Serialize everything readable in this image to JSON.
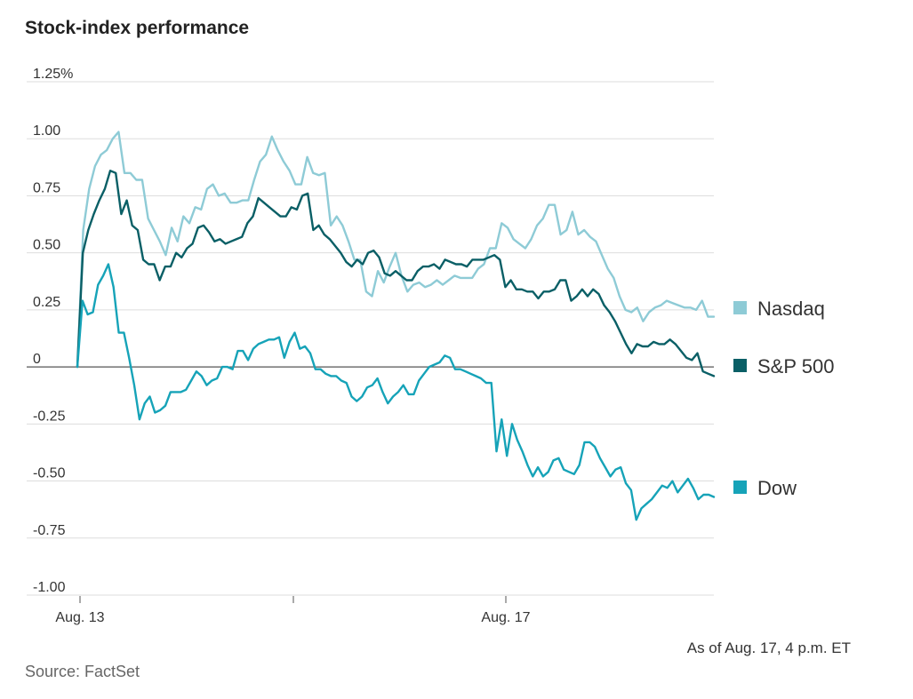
{
  "title": "Stock-index performance",
  "note": "As of Aug. 17, 4 p.m. ET",
  "source": "Source: FactSet",
  "chart_data": {
    "type": "line",
    "ylim": [
      -1.0,
      1.25
    ],
    "y_ticks": [
      {
        "value": 1.25,
        "label": "1.25%"
      },
      {
        "value": 1.0,
        "label": "1.00"
      },
      {
        "value": 0.75,
        "label": "0.75"
      },
      {
        "value": 0.5,
        "label": "0.50"
      },
      {
        "value": 0.25,
        "label": "0.25"
      },
      {
        "value": 0,
        "label": "0"
      },
      {
        "value": -0.25,
        "label": "-0.25"
      },
      {
        "value": -0.5,
        "label": "-0.50"
      },
      {
        "value": -0.75,
        "label": "-0.75"
      },
      {
        "value": -1.0,
        "label": "-1.00"
      }
    ],
    "x_ticks": [
      {
        "label": "Aug. 13"
      },
      {
        "label": ""
      },
      {
        "label": "Aug. 17"
      }
    ],
    "grid": true,
    "legend": "right",
    "series": [
      {
        "name": "Nasdaq",
        "color": "#8ecbd6",
        "values": [
          0.0,
          0.6,
          0.78,
          0.88,
          0.93,
          0.95,
          1.0,
          1.03,
          0.85,
          0.85,
          0.82,
          0.82,
          0.65,
          0.6,
          0.55,
          0.49,
          0.61,
          0.55,
          0.66,
          0.63,
          0.7,
          0.69,
          0.78,
          0.8,
          0.75,
          0.76,
          0.72,
          0.72,
          0.73,
          0.73,
          0.82,
          0.9,
          0.93,
          1.01,
          0.95,
          0.9,
          0.86,
          0.8,
          0.8,
          0.92,
          0.85,
          0.84,
          0.85,
          0.62,
          0.66,
          0.62,
          0.55,
          0.47,
          0.47,
          0.33,
          0.31,
          0.42,
          0.37,
          0.44,
          0.5,
          0.4,
          0.33,
          0.36,
          0.37,
          0.35,
          0.36,
          0.38,
          0.36,
          0.38,
          0.4,
          0.39,
          0.39,
          0.39,
          0.43,
          0.45,
          0.52,
          0.52,
          0.63,
          0.61,
          0.56,
          0.54,
          0.52,
          0.56,
          0.62,
          0.65,
          0.71,
          0.71,
          0.58,
          0.6,
          0.68,
          0.58,
          0.6,
          0.57,
          0.55,
          0.49,
          0.43,
          0.39,
          0.31,
          0.25,
          0.24,
          0.26,
          0.2,
          0.24,
          0.26,
          0.27,
          0.29,
          0.28,
          0.27,
          0.26,
          0.26,
          0.25,
          0.29,
          0.22,
          0.22
        ]
      },
      {
        "name": "S&P 500",
        "color": "#0a5f66",
        "values": [
          0.0,
          0.5,
          0.6,
          0.67,
          0.73,
          0.78,
          0.86,
          0.85,
          0.67,
          0.73,
          0.62,
          0.6,
          0.47,
          0.45,
          0.45,
          0.38,
          0.44,
          0.44,
          0.5,
          0.48,
          0.52,
          0.54,
          0.61,
          0.62,
          0.59,
          0.55,
          0.56,
          0.54,
          0.55,
          0.56,
          0.57,
          0.63,
          0.66,
          0.74,
          0.72,
          0.7,
          0.68,
          0.66,
          0.66,
          0.7,
          0.69,
          0.75,
          0.76,
          0.6,
          0.62,
          0.58,
          0.56,
          0.53,
          0.5,
          0.46,
          0.44,
          0.47,
          0.45,
          0.5,
          0.51,
          0.48,
          0.41,
          0.4,
          0.42,
          0.4,
          0.38,
          0.38,
          0.42,
          0.44,
          0.44,
          0.45,
          0.43,
          0.47,
          0.46,
          0.45,
          0.45,
          0.44,
          0.47,
          0.47,
          0.47,
          0.48,
          0.49,
          0.47,
          0.35,
          0.38,
          0.34,
          0.34,
          0.33,
          0.33,
          0.3,
          0.33,
          0.33,
          0.34,
          0.38,
          0.38,
          0.29,
          0.31,
          0.34,
          0.31,
          0.34,
          0.32,
          0.27,
          0.24,
          0.2,
          0.15,
          0.1,
          0.06,
          0.1,
          0.09,
          0.09,
          0.11,
          0.1,
          0.1,
          0.12,
          0.1,
          0.07,
          0.04,
          0.03,
          0.06,
          -0.02,
          -0.03,
          -0.04
        ]
      },
      {
        "name": "Dow",
        "color": "#16a3b8",
        "values": [
          0.0,
          0.29,
          0.23,
          0.24,
          0.36,
          0.4,
          0.45,
          0.35,
          0.15,
          0.15,
          0.04,
          -0.08,
          -0.23,
          -0.16,
          -0.13,
          -0.2,
          -0.19,
          -0.17,
          -0.11,
          -0.11,
          -0.11,
          -0.1,
          -0.06,
          -0.02,
          -0.04,
          -0.08,
          -0.06,
          -0.05,
          0.0,
          0.0,
          -0.01,
          0.07,
          0.07,
          0.03,
          0.08,
          0.1,
          0.11,
          0.12,
          0.12,
          0.13,
          0.04,
          0.11,
          0.15,
          0.08,
          0.09,
          0.06,
          -0.01,
          -0.01,
          -0.03,
          -0.04,
          -0.04,
          -0.06,
          -0.07,
          -0.13,
          -0.15,
          -0.13,
          -0.09,
          -0.08,
          -0.05,
          -0.11,
          -0.16,
          -0.13,
          -0.11,
          -0.08,
          -0.12,
          -0.12,
          -0.06,
          -0.03,
          0.0,
          0.01,
          0.02,
          0.05,
          0.04,
          -0.01,
          -0.01,
          -0.02,
          -0.03,
          -0.04,
          -0.05,
          -0.07,
          -0.07,
          -0.37,
          -0.23,
          -0.39,
          -0.25,
          -0.32,
          -0.37,
          -0.43,
          -0.48,
          -0.44,
          -0.48,
          -0.46,
          -0.41,
          -0.4,
          -0.45,
          -0.46,
          -0.47,
          -0.43,
          -0.33,
          -0.33,
          -0.35,
          -0.4,
          -0.44,
          -0.48,
          -0.45,
          -0.44,
          -0.51,
          -0.54,
          -0.67,
          -0.62,
          -0.6,
          -0.58,
          -0.55,
          -0.52,
          -0.53,
          -0.5,
          -0.55,
          -0.52,
          -0.49,
          -0.53,
          -0.58,
          -0.56,
          -0.56,
          -0.57
        ]
      }
    ]
  }
}
